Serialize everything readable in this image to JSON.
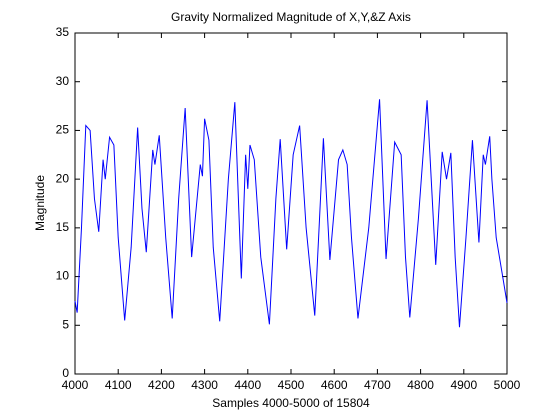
{
  "chart_data": {
    "type": "line",
    "title": "Gravity Normalized Magnitude of X,Y,&Z Axis",
    "xlabel": "Samples 4000-5000 of 15804",
    "ylabel": "Magnitude",
    "xlim": [
      4000,
      5000
    ],
    "ylim": [
      0,
      35
    ],
    "xticks": [
      4000,
      4100,
      4200,
      4300,
      4400,
      4500,
      4600,
      4700,
      4800,
      4900,
      5000
    ],
    "yticks": [
      0,
      5,
      10,
      15,
      20,
      25,
      30,
      35
    ],
    "series": [
      {
        "name": "Magnitude",
        "color": "#0000ff",
        "x": [
          4000,
          4005,
          4015,
          4025,
          4035,
          4045,
          4055,
          4065,
          4070,
          4080,
          4090,
          4100,
          4115,
          4130,
          4145,
          4155,
          4165,
          4180,
          4185,
          4195,
          4210,
          4225,
          4240,
          4255,
          4270,
          4290,
          4295,
          4300,
          4310,
          4320,
          4335,
          4355,
          4370,
          4385,
          4395,
          4400,
          4405,
          4415,
          4430,
          4450,
          4465,
          4475,
          4490,
          4505,
          4520,
          4535,
          4555,
          4565,
          4575,
          4590,
          4610,
          4620,
          4630,
          4640,
          4655,
          4680,
          4705,
          4720,
          4740,
          4755,
          4765,
          4775,
          4795,
          4815,
          4835,
          4850,
          4860,
          4870,
          4880,
          4890,
          4905,
          4920,
          4935,
          4945,
          4950,
          4960,
          4965,
          4975,
          4990,
          5000
        ],
        "values": [
          7.5,
          6.3,
          15,
          25.5,
          25,
          18,
          14.6,
          22,
          20,
          24.3,
          23.5,
          14,
          5.5,
          13,
          25.3,
          17,
          12.5,
          23,
          21.5,
          24.5,
          14,
          5.7,
          18,
          27.3,
          12,
          21.5,
          20.3,
          26.2,
          24,
          13,
          5.4,
          20,
          27.9,
          9.8,
          22.5,
          19,
          23.5,
          22,
          12,
          5.1,
          18,
          24.1,
          12.8,
          22.5,
          25.5,
          15,
          6,
          15,
          24.2,
          11.7,
          22,
          23,
          21.5,
          14,
          5.7,
          15,
          28.2,
          11.8,
          23.8,
          22.5,
          12,
          5.8,
          16,
          28.1,
          11.2,
          22.8,
          20,
          22.7,
          12,
          4.8,
          14,
          24,
          13.5,
          22.5,
          21.5,
          24.4,
          20,
          14,
          10,
          7.3
        ]
      }
    ]
  }
}
